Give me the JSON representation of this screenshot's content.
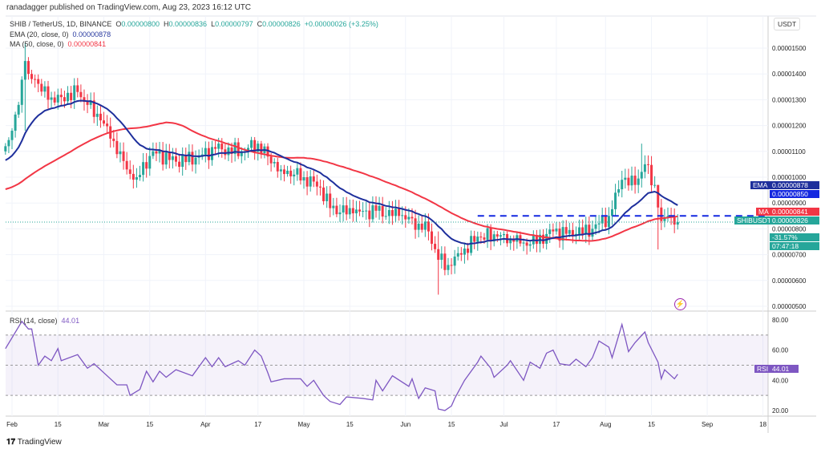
{
  "header": {
    "published": "ranadagger published on TradingView.com, Aug 23, 2023 16:12 UTC",
    "symbol": "SHIB / TetherUS, 1D, BINANCE",
    "o_label": "O",
    "o": "0.00000800",
    "h_label": "H",
    "h": "0.00000836",
    "l_label": "L",
    "l": "0.00000797",
    "c_label": "C",
    "c": "0.00000826",
    "change": "+0.00000026 (+3.25%)",
    "ema_label": "EMA (20, close, 0)",
    "ema_value": "0.00000878",
    "ma_label": "MA (50, close, 0)",
    "ma_value": "0.00000841",
    "rsi_label": "RSI (14, close)",
    "rsi_value": "44.01"
  },
  "currency": "USDT",
  "tags": {
    "ema": "EMA",
    "ema_val": "0.00000878",
    "level_val": "0.00000850",
    "ma": "MA",
    "ma_val": "0.00000841",
    "symbol": "SHIBUSDT",
    "price": "0.00000826",
    "pct": "-31.57%",
    "countdown": "07:47:18",
    "rsi": "RSI",
    "rsi_val": "44.01"
  },
  "colors": {
    "up": "#26a69a",
    "down": "#f23645",
    "ema": "#1e2f9c",
    "ma": "#f23645",
    "rsi": "#7e57c2",
    "level": "#1428e0"
  },
  "footer": {
    "brand": "TradingView"
  },
  "chart_data": {
    "type": "candlestick",
    "price_unit": "1e-8 USDT",
    "price_ticks": [
      "0.00000500",
      "0.00000600",
      "0.00000700",
      "0.00000800",
      "0.00000900",
      "0.00001000",
      "0.00001100",
      "0.00001200",
      "0.00001300",
      "0.00001400",
      "0.00001500"
    ],
    "price_tick_values": [
      50,
      60,
      70,
      80,
      90,
      100,
      110,
      120,
      130,
      140,
      150
    ],
    "ylim": [
      50,
      150
    ],
    "x_day_origin": "Feb 1 2023",
    "time_ticks": [
      {
        "label": "Feb",
        "day": 0
      },
      {
        "label": "15",
        "day": 14
      },
      {
        "label": "Mar",
        "day": 28
      },
      {
        "label": "15",
        "day": 42
      },
      {
        "label": "Apr",
        "day": 59
      },
      {
        "label": "17",
        "day": 75
      },
      {
        "label": "May",
        "day": 89
      },
      {
        "label": "15",
        "day": 103
      },
      {
        "label": "Jun",
        "day": 120
      },
      {
        "label": "15",
        "day": 134
      },
      {
        "label": "Jul",
        "day": 150
      },
      {
        "label": "17",
        "day": 166
      },
      {
        "label": "Aug",
        "day": 181
      },
      {
        "label": "15",
        "day": 195
      },
      {
        "label": "Sep",
        "day": 212
      },
      {
        "label": "18",
        "day": 229
      }
    ],
    "close_keypoints": [
      [
        -2,
        112
      ],
      [
        0,
        118
      ],
      [
        2,
        128
      ],
      [
        4,
        145
      ],
      [
        5,
        140
      ],
      [
        7,
        138
      ],
      [
        11,
        130
      ],
      [
        15,
        131
      ],
      [
        20,
        133
      ],
      [
        23,
        128
      ],
      [
        27,
        122
      ],
      [
        31,
        114
      ],
      [
        33,
        110
      ],
      [
        35,
        103
      ],
      [
        38,
        100
      ],
      [
        43,
        110
      ],
      [
        50,
        106
      ],
      [
        57,
        108
      ],
      [
        62,
        111
      ],
      [
        70,
        110
      ],
      [
        75,
        113
      ],
      [
        78,
        108
      ],
      [
        82,
        103
      ],
      [
        89,
        100
      ],
      [
        94,
        96
      ],
      [
        97,
        88
      ],
      [
        104,
        86
      ],
      [
        111,
        87
      ],
      [
        118,
        85
      ],
      [
        124,
        82
      ],
      [
        127,
        79
      ],
      [
        130,
        68
      ],
      [
        133,
        66
      ],
      [
        137,
        70
      ],
      [
        142,
        77
      ],
      [
        148,
        77
      ],
      [
        153,
        75
      ],
      [
        158,
        74
      ],
      [
        165,
        79
      ],
      [
        172,
        78
      ],
      [
        177,
        80
      ],
      [
        182,
        85
      ],
      [
        186,
        99
      ],
      [
        190,
        97
      ],
      [
        193,
        105
      ],
      [
        196,
        97
      ],
      [
        198,
        83
      ],
      [
        200,
        85
      ],
      [
        203,
        82.6
      ]
    ],
    "wick_overrides": [
      [
        4,
        152,
        118
      ],
      [
        130,
        79,
        54.5
      ],
      [
        192,
        113,
        96
      ],
      [
        197,
        97,
        72
      ]
    ],
    "horizontal_level": 85,
    "level_from_day": 142,
    "rsi": {
      "ylim": [
        15,
        85
      ],
      "ticks": [
        "80.00",
        "60.00",
        "40.00",
        "20.00"
      ],
      "tick_values": [
        80,
        60,
        40,
        20
      ],
      "bands": [
        70,
        50,
        30
      ],
      "points": [
        [
          -2,
          61
        ],
        [
          3,
          79
        ],
        [
          5,
          74
        ],
        [
          6,
          74
        ],
        [
          8,
          50
        ],
        [
          10,
          56
        ],
        [
          12,
          53
        ],
        [
          14,
          61
        ],
        [
          15,
          53
        ],
        [
          20,
          57
        ],
        [
          23,
          48
        ],
        [
          25,
          51
        ],
        [
          28,
          45
        ],
        [
          32,
          37
        ],
        [
          35,
          37
        ],
        [
          36,
          30
        ],
        [
          39,
          34
        ],
        [
          41,
          46
        ],
        [
          43,
          39
        ],
        [
          45,
          46
        ],
        [
          47,
          42
        ],
        [
          50,
          47
        ],
        [
          55,
          43
        ],
        [
          59,
          55
        ],
        [
          61,
          49
        ],
        [
          63,
          55
        ],
        [
          65,
          49
        ],
        [
          69,
          53
        ],
        [
          71,
          50
        ],
        [
          74,
          60
        ],
        [
          76,
          56
        ],
        [
          78,
          45
        ],
        [
          79,
          39
        ],
        [
          83,
          41
        ],
        [
          88,
          41
        ],
        [
          90,
          36
        ],
        [
          92,
          40
        ],
        [
          95,
          30
        ],
        [
          97,
          26
        ],
        [
          100,
          24
        ],
        [
          102,
          29
        ],
        [
          107,
          28
        ],
        [
          110,
          27
        ],
        [
          111,
          40
        ],
        [
          113,
          33
        ],
        [
          116,
          43
        ],
        [
          121,
          36
        ],
        [
          122,
          41
        ],
        [
          124,
          28
        ],
        [
          126,
          35
        ],
        [
          129,
          33
        ],
        [
          130,
          21
        ],
        [
          132,
          20
        ],
        [
          134,
          23
        ],
        [
          135,
          28
        ],
        [
          138,
          40
        ],
        [
          142,
          52
        ],
        [
          143,
          56
        ],
        [
          146,
          48
        ],
        [
          147,
          42
        ],
        [
          151,
          50
        ],
        [
          152,
          53
        ],
        [
          156,
          40
        ],
        [
          158,
          52
        ],
        [
          161,
          48
        ],
        [
          163,
          58
        ],
        [
          165,
          60
        ],
        [
          167,
          51
        ],
        [
          170,
          50
        ],
        [
          172,
          54
        ],
        [
          175,
          49
        ],
        [
          177,
          55
        ],
        [
          179,
          66
        ],
        [
          182,
          62
        ],
        [
          183,
          55
        ],
        [
          186,
          77
        ],
        [
          188,
          59
        ],
        [
          190,
          65
        ],
        [
          193,
          72
        ],
        [
          194,
          65
        ],
        [
          197,
          52
        ],
        [
          198,
          41
        ],
        [
          199,
          47
        ],
        [
          202,
          41
        ],
        [
          203,
          44
        ]
      ]
    }
  }
}
